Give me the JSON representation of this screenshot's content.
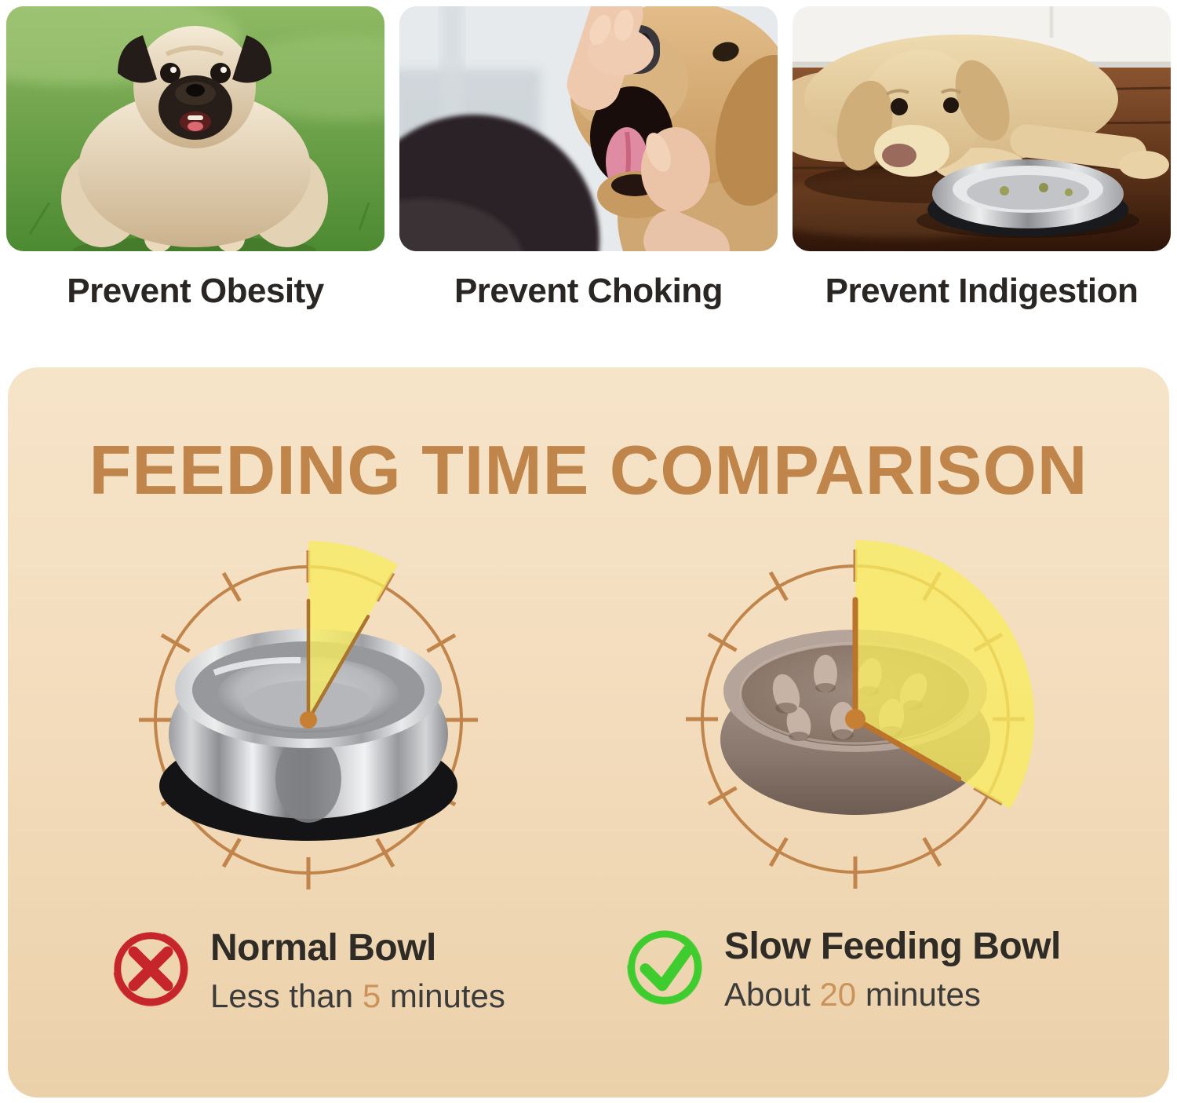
{
  "benefits": {
    "items": [
      {
        "label": "Prevent Obesity",
        "photo": "obese-pug-photo"
      },
      {
        "label": "Prevent Choking",
        "photo": "choking-check-photo"
      },
      {
        "label": "Prevent Indigestion",
        "photo": "dog-indigestion-photo"
      }
    ]
  },
  "comparison": {
    "title": "FEEDING TIME COMPARISON",
    "items": [
      {
        "icon": "cross-icon",
        "name": "Normal Bowl",
        "time_prefix": "Less than ",
        "time_value": "5",
        "time_suffix": " minutes",
        "minutes": 5
      },
      {
        "icon": "check-icon",
        "name": "Slow Feeding Bowl",
        "time_prefix": "About ",
        "time_value": "20",
        "time_suffix": " minutes",
        "minutes": 20
      }
    ]
  },
  "colors": {
    "accent_title": "#C0854A",
    "dial": "#C1854B",
    "highlight_wedge": "#F6E95C",
    "number": "#CB935A",
    "cross": "#C6262B",
    "check": "#3FCC2E",
    "panel_top": "#F6E4C9",
    "panel_bottom": "#EBD1AA"
  }
}
